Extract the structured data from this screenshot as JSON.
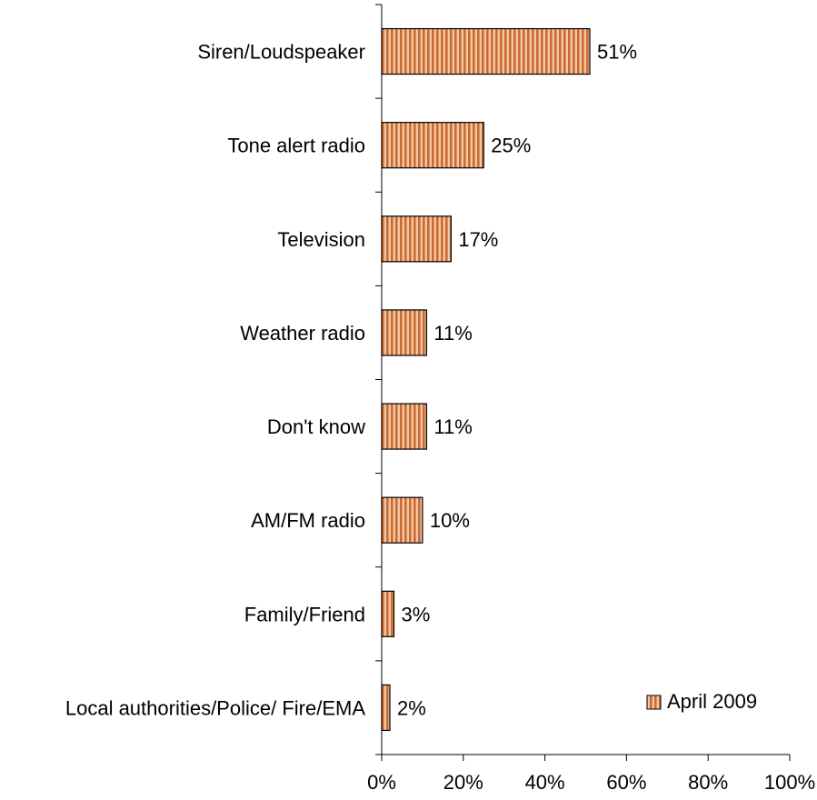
{
  "chart_data": {
    "type": "bar",
    "orientation": "horizontal",
    "title": "",
    "xlabel": "",
    "ylabel": "",
    "categories": [
      "Siren/Loudspeaker",
      "Tone alert radio",
      "Television",
      "Weather radio",
      "Don't know",
      "AM/FM radio",
      "Family/Friend",
      "Local authorities/Police/ Fire/EMA"
    ],
    "series": [
      {
        "name": "April 2009",
        "values": [
          51,
          25,
          17,
          11,
          11,
          10,
          3,
          2
        ],
        "value_labels": [
          "51%",
          "25%",
          "17%",
          "11%",
          "11%",
          "10%",
          "3%",
          "2%"
        ],
        "fill_color": "#cd6a2f",
        "fill_pattern": "vertical-stripes",
        "stroke_color": "#000000"
      }
    ],
    "xlim": [
      0,
      100
    ],
    "x_ticks": [
      0,
      20,
      40,
      60,
      80,
      100
    ],
    "x_tick_labels": [
      "0%",
      "20%",
      "40%",
      "60%",
      "80%",
      "100%"
    ],
    "grid": false,
    "legend": {
      "position": "bottom-right",
      "label": "April 2009"
    }
  }
}
